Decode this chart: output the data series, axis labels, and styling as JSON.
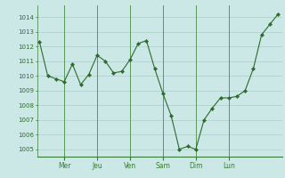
{
  "x_pts": [
    0,
    1,
    2,
    3,
    4,
    5,
    6,
    7,
    8,
    9,
    10,
    11,
    12,
    13,
    14,
    15,
    16,
    17,
    18,
    19,
    20,
    21,
    22,
    23,
    24,
    25,
    26,
    27,
    28,
    29
  ],
  "y_pts": [
    1012.3,
    1010.0,
    1009.8,
    1009.6,
    1010.8,
    1009.4,
    1010.1,
    1011.4,
    1011.0,
    1010.2,
    1010.3,
    1011.1,
    1012.2,
    1012.4,
    1010.5,
    1008.8,
    1007.3,
    1005.0,
    1005.2,
    1005.0,
    1007.0,
    1007.8,
    1008.5,
    1008.5,
    1008.6,
    1009.0,
    1010.5,
    1012.8,
    1013.5,
    1014.2
  ],
  "ylim_min": 1004.5,
  "ylim_max": 1014.8,
  "xlim_min": -0.3,
  "xlim_max": 29.5,
  "yticks": [
    1005,
    1006,
    1007,
    1008,
    1009,
    1010,
    1011,
    1012,
    1013,
    1014
  ],
  "day_positions": [
    3,
    7,
    11,
    15,
    19,
    23
  ],
  "day_labels": [
    "Mer",
    "Jeu",
    "Ven",
    "Sam",
    "Dim",
    "Lun"
  ],
  "line_color": "#2d6a2d",
  "marker": "D",
  "marker_size": 2.2,
  "bg_color": "#cce8e6",
  "grid_color": "#aacfcc",
  "spine_color": "#3a7a3a",
  "tick_label_color": "#2d6a2d",
  "day_vline_color": "#5a9a5a"
}
